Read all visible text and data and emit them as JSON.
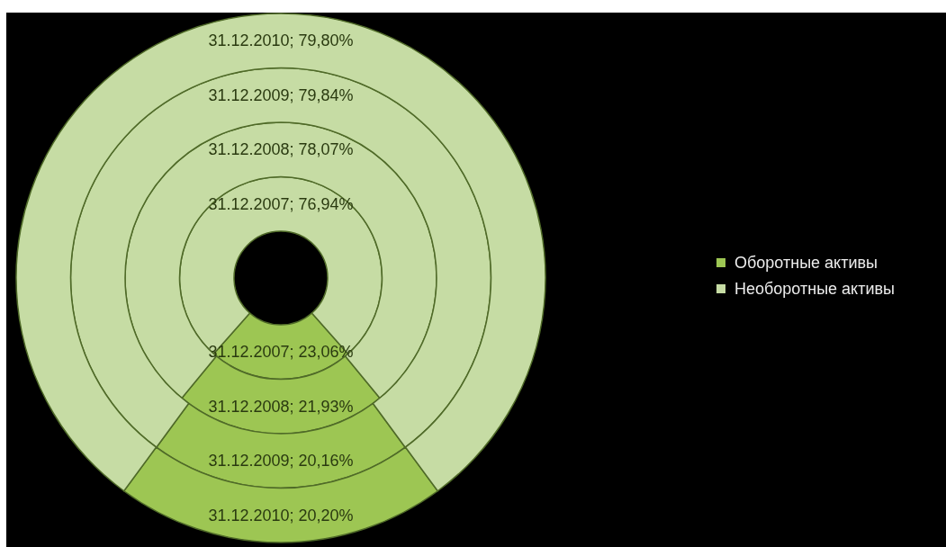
{
  "chart_data": {
    "type": "donut",
    "categories": [
      "Оборотные активы",
      "Необоротные активы"
    ],
    "colors": [
      "#9dc653",
      "#c6dca4"
    ],
    "series": [
      {
        "values": [
          23.06,
          76.94
        ],
        "value_labels": [
          "31.12.2007; 23,06%",
          "31.12.2007; 76,94%"
        ]
      },
      {
        "values": [
          21.93,
          78.07
        ],
        "value_labels": [
          "31.12.2008; 21,93%",
          "31.12.2008; 78,07%"
        ]
      },
      {
        "values": [
          20.16,
          79.84
        ],
        "value_labels": [
          "31.12.2009; 20,16%",
          "31.12.2009; 79,84%"
        ]
      },
      {
        "values": [
          20.2,
          79.8
        ],
        "value_labels": [
          "31.12.2010; 20,20%",
          "31.12.2010; 79,80%"
        ]
      }
    ],
    "legend": "right"
  }
}
